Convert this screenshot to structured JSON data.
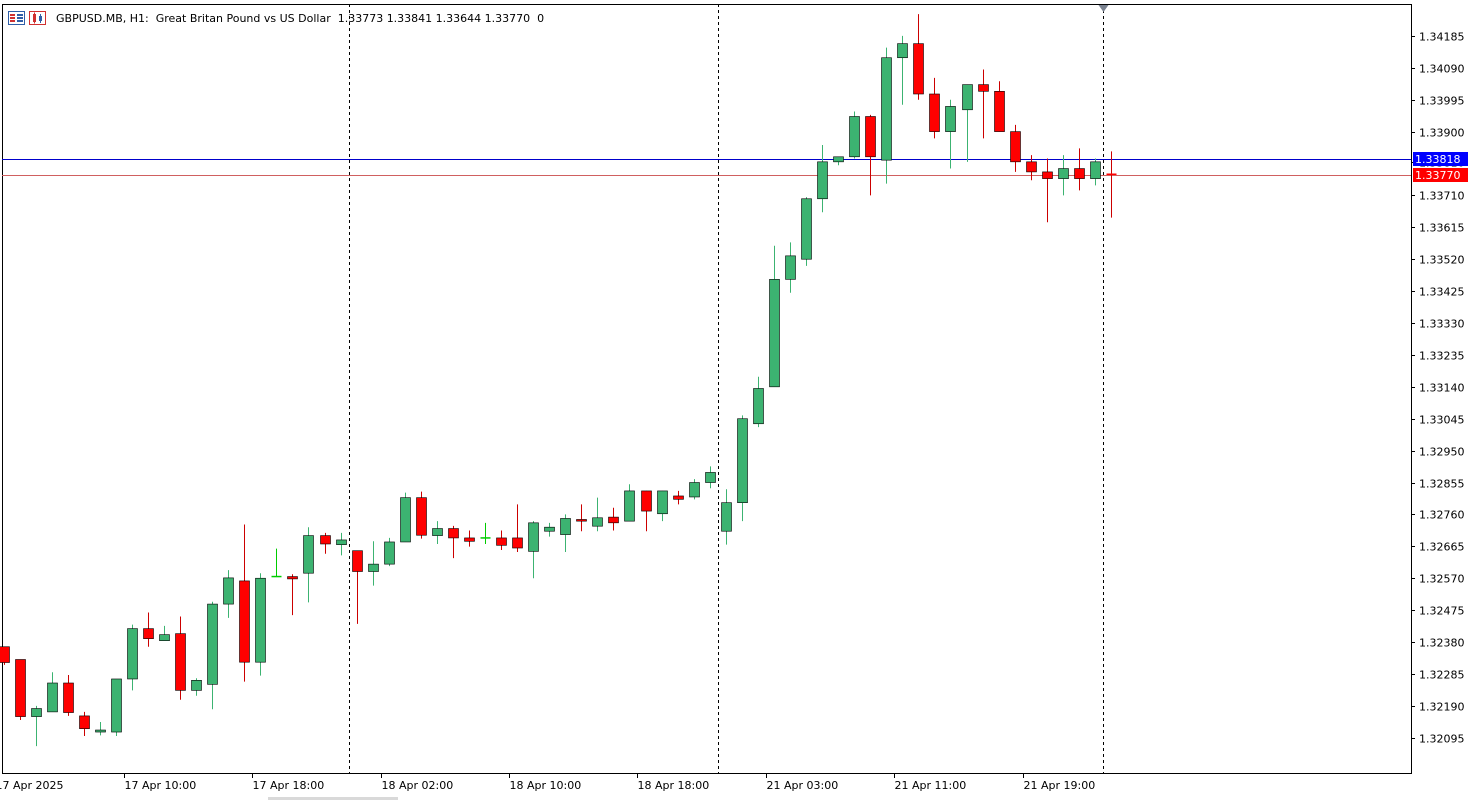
{
  "header": {
    "text": "GBPUSD.MB, H1:  Great Britan Pound vs US Dollar  1.33773 1.33841 1.33644 1.33770  0",
    "icons": [
      "menu-list-icon",
      "chart-window-icon"
    ]
  },
  "chart_data": {
    "type": "candlestick",
    "symbol": "GBPUSD.MB",
    "timeframe": "H1",
    "description": "Great Britan Pound vs US Dollar",
    "current_ohlc": {
      "open": 1.33773,
      "high": 1.33841,
      "low": 1.33644,
      "close": 1.3377
    },
    "ylim": [
      1.3199,
      1.3428
    ],
    "y_ticks": [
      "1.34185",
      "1.34090",
      "1.33995",
      "1.33900",
      "1.33810",
      "1.33710",
      "1.33615",
      "1.33520",
      "1.33425",
      "1.33330",
      "1.33235",
      "1.33140",
      "1.33045",
      "1.32950",
      "1.32855",
      "1.32760",
      "1.32665",
      "1.32570",
      "1.32475",
      "1.32380",
      "1.32285",
      "1.32190",
      "1.32095"
    ],
    "x_ticks": [
      {
        "label": "17 Apr 2025",
        "index": -0.5
      },
      {
        "label": "17 Apr 10:00",
        "index": 7.5
      },
      {
        "label": "17 Apr 18:00",
        "index": 15.5
      },
      {
        "label": "18 Apr 02:00",
        "index": 23.5
      },
      {
        "label": "18 Apr 10:00",
        "index": 31.5
      },
      {
        "label": "18 Apr 18:00",
        "index": 39.5
      },
      {
        "label": "21 Apr 03:00",
        "index": 47.5
      },
      {
        "label": "21 Apr 11:00",
        "index": 55.5
      },
      {
        "label": "21 Apr 19:00",
        "index": 63.5
      }
    ],
    "separators": [
      21.5,
      44.5,
      68.5
    ],
    "colors": {
      "bull": "#3cb371",
      "bear": "#ff0000",
      "wick_bull": "#3cb371",
      "wick_bear": "#cc0000",
      "doji": "#00cc00"
    },
    "horizontal_lines": [
      {
        "price": 1.33818,
        "color": "#0000cc",
        "label": "1.33818",
        "label_bg": "#0000ff"
      },
      {
        "price": 1.3377,
        "color": "#d06060",
        "label": "1.33770",
        "label_bg": "#ff0000"
      }
    ],
    "candles": [
      [
        1.32366,
        1.32366,
        1.32312,
        1.32319
      ],
      [
        1.32328,
        1.32328,
        1.32148,
        1.32158
      ],
      [
        1.32158,
        1.3219,
        1.3207,
        1.32182
      ],
      [
        1.32172,
        1.3229,
        1.32172,
        1.32258
      ],
      [
        1.32258,
        1.32282,
        1.3216,
        1.3217
      ],
      [
        1.3216,
        1.32172,
        1.321,
        1.32122
      ],
      [
        1.32112,
        1.32142,
        1.32102,
        1.32118
      ],
      [
        1.32112,
        1.3227,
        1.321,
        1.3227
      ],
      [
        1.3227,
        1.32432,
        1.32236,
        1.3242
      ],
      [
        1.3242,
        1.32468,
        1.32366,
        1.3239
      ],
      [
        1.32384,
        1.32428,
        1.32384,
        1.32402
      ],
      [
        1.32405,
        1.32456,
        1.32208,
        1.32236
      ],
      [
        1.32236,
        1.32272,
        1.3222,
        1.32266
      ],
      [
        1.32254,
        1.325,
        1.3218,
        1.32493
      ],
      [
        1.32493,
        1.32594,
        1.32452,
        1.32571
      ],
      [
        1.32562,
        1.3273,
        1.32262,
        1.3232
      ],
      [
        1.3232,
        1.32585,
        1.3228,
        1.3257
      ],
      [
        1.32575,
        1.32658,
        1.32575,
        1.32575
      ],
      [
        1.32575,
        1.32582,
        1.3246,
        1.32568
      ],
      [
        1.32585,
        1.32722,
        1.32498,
        1.32697
      ],
      [
        1.32697,
        1.32705,
        1.32643,
        1.32672
      ],
      [
        1.3267,
        1.32705,
        1.32638,
        1.32684
      ],
      [
        1.32652,
        1.32652,
        1.32434,
        1.3259
      ],
      [
        1.3259,
        1.3268,
        1.32548,
        1.32612
      ],
      [
        1.32612,
        1.3269,
        1.32606,
        1.32678
      ],
      [
        1.32678,
        1.32825,
        1.32678,
        1.3281
      ],
      [
        1.3281,
        1.32828,
        1.32688,
        1.32698
      ],
      [
        1.32697,
        1.3274,
        1.32672,
        1.32718
      ],
      [
        1.32718,
        1.32726,
        1.3263,
        1.3269
      ],
      [
        1.3269,
        1.32712,
        1.32664,
        1.3268
      ],
      [
        1.3269,
        1.32735,
        1.32672,
        1.3269
      ],
      [
        1.3269,
        1.32712,
        1.32654,
        1.32668
      ],
      [
        1.3269,
        1.3279,
        1.32648,
        1.3266
      ],
      [
        1.3265,
        1.3274,
        1.3257,
        1.32735
      ],
      [
        1.3271,
        1.32735,
        1.32694,
        1.32722
      ],
      [
        1.327,
        1.3276,
        1.32648,
        1.32748
      ],
      [
        1.32745,
        1.3279,
        1.3271,
        1.3274
      ],
      [
        1.32725,
        1.3281,
        1.3271,
        1.3275
      ],
      [
        1.32752,
        1.3278,
        1.32712,
        1.32735
      ],
      [
        1.3274,
        1.3285,
        1.3274,
        1.3283
      ],
      [
        1.3283,
        1.3283,
        1.3271,
        1.3277
      ],
      [
        1.32762,
        1.3283,
        1.3274,
        1.3283
      ],
      [
        1.32815,
        1.3283,
        1.3279,
        1.32805
      ],
      [
        1.32812,
        1.32865,
        1.32805,
        1.32855
      ],
      [
        1.32855,
        1.32903,
        1.32838,
        1.32885
      ],
      [
        1.3271,
        1.32835,
        1.3267,
        1.32795
      ],
      [
        1.32795,
        1.33055,
        1.3274,
        1.33045
      ],
      [
        1.3303,
        1.3317,
        1.3302,
        1.33135
      ],
      [
        1.3314,
        1.3356,
        1.3314,
        1.3346
      ],
      [
        1.3346,
        1.3357,
        1.3342,
        1.3353
      ],
      [
        1.3352,
        1.33705,
        1.335,
        1.337
      ],
      [
        1.337,
        1.3386,
        1.3366,
        1.3381
      ],
      [
        1.3381,
        1.33825,
        1.338,
        1.33825
      ],
      [
        1.33825,
        1.3396,
        1.3382,
        1.33945
      ],
      [
        1.33945,
        1.3395,
        1.3371,
        1.33825
      ],
      [
        1.33815,
        1.3415,
        1.33745,
        1.3412
      ],
      [
        1.3412,
        1.34185,
        1.3398,
        1.34162
      ],
      [
        1.34162,
        1.3425,
        1.33995,
        1.34012
      ],
      [
        1.34012,
        1.3406,
        1.3388,
        1.339
      ],
      [
        1.339,
        1.33995,
        1.3379,
        1.33975
      ],
      [
        1.33965,
        1.3404,
        1.3381,
        1.3404
      ],
      [
        1.3404,
        1.34085,
        1.3388,
        1.3402
      ],
      [
        1.3402,
        1.3405,
        1.339,
        1.339
      ],
      [
        1.339,
        1.3392,
        1.3378,
        1.3381
      ],
      [
        1.3381,
        1.3383,
        1.33755,
        1.3378
      ],
      [
        1.3378,
        1.3382,
        1.3363,
        1.3376
      ],
      [
        1.3376,
        1.3383,
        1.3371,
        1.3379
      ],
      [
        1.3379,
        1.3385,
        1.33725,
        1.3376
      ],
      [
        1.3376,
        1.3382,
        1.3374,
        1.3381
      ],
      [
        1.33773,
        1.33841,
        1.33644,
        1.3377
      ]
    ]
  }
}
